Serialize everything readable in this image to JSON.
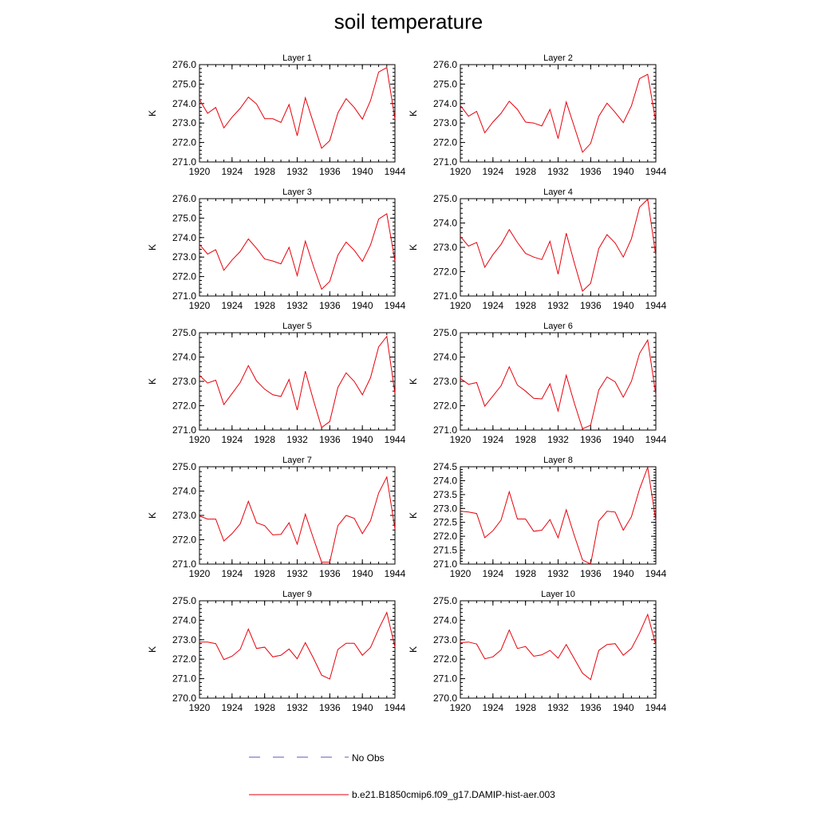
{
  "title": "soil temperature",
  "legend": {
    "obs_label": "No Obs",
    "obs_color": "#5b5bb5",
    "model_label": "b.e21.B1850cmip6.f09_g17.DAMIP-hist-aer.003",
    "model_color": "#e8000b"
  },
  "chart_data": [
    {
      "type": "line",
      "title": "Layer 1",
      "ylabel": "K",
      "x": [
        1920,
        1921,
        1922,
        1923,
        1924,
        1925,
        1926,
        1927,
        1928,
        1929,
        1930,
        1931,
        1932,
        1933,
        1934,
        1935,
        1936,
        1937,
        1938,
        1939,
        1940,
        1941,
        1942,
        1943,
        1944
      ],
      "values": [
        274.2,
        273.5,
        273.8,
        272.75,
        273.3,
        273.75,
        274.33,
        273.98,
        273.22,
        273.22,
        273.03,
        273.95,
        272.35,
        274.3,
        273.0,
        271.7,
        272.1,
        273.52,
        274.25,
        273.8,
        273.2,
        274.15,
        275.62,
        275.85,
        273.2
      ],
      "ylim": [
        271.0,
        276.0
      ],
      "yticks": [
        271.0,
        272.0,
        273.0,
        274.0,
        275.0,
        276.0
      ],
      "ytick_format": 1,
      "xticks": [
        1920,
        1924,
        1928,
        1932,
        1936,
        1940,
        1944
      ]
    },
    {
      "type": "line",
      "title": "Layer 2",
      "ylabel": "K",
      "x": [
        1920,
        1921,
        1922,
        1923,
        1924,
        1925,
        1926,
        1927,
        1928,
        1929,
        1930,
        1931,
        1932,
        1933,
        1934,
        1935,
        1936,
        1937,
        1938,
        1939,
        1940,
        1941,
        1942,
        1943,
        1944
      ],
      "values": [
        273.9,
        273.35,
        273.6,
        272.5,
        273.05,
        273.5,
        274.12,
        273.7,
        273.05,
        273.0,
        272.85,
        273.7,
        272.2,
        274.08,
        272.8,
        271.5,
        271.95,
        273.35,
        274.02,
        273.55,
        273.02,
        273.88,
        275.28,
        275.5,
        273.05
      ],
      "ylim": [
        271.0,
        276.0
      ],
      "yticks": [
        271.0,
        272.0,
        273.0,
        274.0,
        275.0,
        276.0
      ],
      "ytick_format": 1,
      "xticks": [
        1920,
        1924,
        1928,
        1932,
        1936,
        1940,
        1944
      ]
    },
    {
      "type": "line",
      "title": "Layer 3",
      "ylabel": "K",
      "x": [
        1920,
        1921,
        1922,
        1923,
        1924,
        1925,
        1926,
        1927,
        1928,
        1929,
        1930,
        1931,
        1932,
        1933,
        1934,
        1935,
        1936,
        1937,
        1938,
        1939,
        1940,
        1941,
        1942,
        1943,
        1944
      ],
      "values": [
        273.65,
        273.15,
        273.38,
        272.32,
        272.85,
        273.28,
        273.93,
        273.45,
        272.9,
        272.8,
        272.65,
        273.5,
        272.05,
        273.82,
        272.52,
        271.35,
        271.75,
        273.1,
        273.77,
        273.35,
        272.78,
        273.62,
        274.95,
        275.22,
        272.8
      ],
      "ylim": [
        271.0,
        276.0
      ],
      "yticks": [
        271.0,
        272.0,
        273.0,
        274.0,
        275.0,
        276.0
      ],
      "ytick_format": 1,
      "xticks": [
        1920,
        1924,
        1928,
        1932,
        1936,
        1940,
        1944
      ]
    },
    {
      "type": "line",
      "title": "Layer 4",
      "ylabel": "K",
      "x": [
        1920,
        1921,
        1922,
        1923,
        1924,
        1925,
        1926,
        1927,
        1928,
        1929,
        1930,
        1931,
        1932,
        1933,
        1934,
        1935,
        1936,
        1937,
        1938,
        1939,
        1940,
        1941,
        1942,
        1943,
        1944
      ],
      "values": [
        273.45,
        273.05,
        273.2,
        272.18,
        272.7,
        273.12,
        273.73,
        273.2,
        272.75,
        272.6,
        272.5,
        273.25,
        271.9,
        273.58,
        272.35,
        271.2,
        271.52,
        272.95,
        273.52,
        273.18,
        272.6,
        273.35,
        274.65,
        274.98,
        272.65
      ],
      "ylim": [
        271.0,
        275.0
      ],
      "yticks": [
        271.0,
        272.0,
        273.0,
        274.0,
        275.0
      ],
      "ytick_format": 1,
      "xticks": [
        1920,
        1924,
        1928,
        1932,
        1936,
        1940,
        1944
      ]
    },
    {
      "type": "line",
      "title": "Layer 5",
      "ylabel": "K",
      "x": [
        1920,
        1921,
        1922,
        1923,
        1924,
        1925,
        1926,
        1927,
        1928,
        1929,
        1930,
        1931,
        1932,
        1933,
        1934,
        1935,
        1936,
        1937,
        1938,
        1939,
        1940,
        1941,
        1942,
        1943,
        1944
      ],
      "values": [
        273.25,
        272.93,
        273.05,
        272.05,
        272.5,
        272.95,
        273.65,
        273.02,
        272.68,
        272.45,
        272.38,
        273.08,
        271.82,
        273.42,
        272.22,
        271.1,
        271.35,
        272.75,
        273.35,
        273.0,
        272.45,
        273.15,
        274.42,
        274.85,
        272.5
      ],
      "ylim": [
        271.0,
        275.0
      ],
      "yticks": [
        271.0,
        272.0,
        273.0,
        274.0,
        275.0
      ],
      "ytick_format": 1,
      "xticks": [
        1920,
        1924,
        1928,
        1932,
        1936,
        1940,
        1944
      ]
    },
    {
      "type": "line",
      "title": "Layer 6",
      "ylabel": "K",
      "x": [
        1920,
        1921,
        1922,
        1923,
        1924,
        1925,
        1926,
        1927,
        1928,
        1929,
        1930,
        1931,
        1932,
        1933,
        1934,
        1935,
        1936,
        1937,
        1938,
        1939,
        1940,
        1941,
        1942,
        1943,
        1944
      ],
      "values": [
        273.12,
        272.88,
        272.95,
        271.98,
        272.4,
        272.82,
        273.6,
        272.85,
        272.6,
        272.3,
        272.28,
        272.9,
        271.78,
        273.25,
        272.1,
        271.05,
        271.2,
        272.65,
        273.18,
        272.98,
        272.35,
        273.0,
        274.15,
        274.7,
        272.45
      ],
      "ylim": [
        271.0,
        275.0
      ],
      "yticks": [
        271.0,
        272.0,
        273.0,
        274.0,
        275.0
      ],
      "ytick_format": 1,
      "xticks": [
        1920,
        1924,
        1928,
        1932,
        1936,
        1940,
        1944
      ]
    },
    {
      "type": "line",
      "title": "Layer 7",
      "ylabel": "K",
      "x": [
        1920,
        1921,
        1922,
        1923,
        1924,
        1925,
        1926,
        1927,
        1928,
        1929,
        1930,
        1931,
        1932,
        1933,
        1934,
        1935,
        1936,
        1937,
        1938,
        1939,
        1940,
        1941,
        1942,
        1943,
        1944
      ],
      "values": [
        272.98,
        272.85,
        272.85,
        271.95,
        272.25,
        272.65,
        273.58,
        272.7,
        272.58,
        272.2,
        272.22,
        272.7,
        271.82,
        273.05,
        272.05,
        271.08,
        271.08,
        272.58,
        273.0,
        272.88,
        272.25,
        272.78,
        273.92,
        274.58,
        272.45
      ],
      "ylim": [
        271.0,
        275.0
      ],
      "yticks": [
        271.0,
        272.0,
        273.0,
        274.0,
        275.0
      ],
      "ytick_format": 1,
      "xticks": [
        1920,
        1924,
        1928,
        1932,
        1936,
        1940,
        1944
      ]
    },
    {
      "type": "line",
      "title": "Layer 8",
      "ylabel": "K",
      "x": [
        1920,
        1921,
        1922,
        1923,
        1924,
        1925,
        1926,
        1927,
        1928,
        1929,
        1930,
        1931,
        1932,
        1933,
        1934,
        1935,
        1936,
        1937,
        1938,
        1939,
        1940,
        1941,
        1942,
        1943,
        1944
      ],
      "values": [
        272.9,
        272.87,
        272.82,
        271.95,
        272.2,
        272.58,
        273.6,
        272.62,
        272.62,
        272.18,
        272.22,
        272.6,
        271.95,
        272.95,
        272.02,
        271.15,
        271.0,
        272.55,
        272.9,
        272.87,
        272.22,
        272.7,
        273.7,
        274.48,
        272.55
      ],
      "ylim": [
        271.0,
        274.5
      ],
      "yticks": [
        271.0,
        271.5,
        272.0,
        272.5,
        273.0,
        273.5,
        274.0,
        274.5
      ],
      "ytick_format": 1,
      "xticks": [
        1920,
        1924,
        1928,
        1932,
        1936,
        1940,
        1944
      ]
    },
    {
      "type": "line",
      "title": "Layer 9",
      "ylabel": "K",
      "x": [
        1920,
        1921,
        1922,
        1923,
        1924,
        1925,
        1926,
        1927,
        1928,
        1929,
        1930,
        1931,
        1932,
        1933,
        1934,
        1935,
        1936,
        1937,
        1938,
        1939,
        1940,
        1941,
        1942,
        1943,
        1944
      ],
      "values": [
        272.88,
        272.88,
        272.8,
        271.98,
        272.15,
        272.5,
        273.55,
        272.55,
        272.62,
        272.12,
        272.2,
        272.52,
        272.02,
        272.85,
        272.05,
        271.18,
        270.98,
        272.5,
        272.82,
        272.82,
        272.2,
        272.6,
        273.55,
        274.4,
        272.62
      ],
      "ylim": [
        270.0,
        275.0
      ],
      "yticks": [
        270.0,
        271.0,
        272.0,
        273.0,
        274.0,
        275.0
      ],
      "ytick_format": 1,
      "xticks": [
        1920,
        1924,
        1928,
        1932,
        1936,
        1940,
        1944
      ]
    },
    {
      "type": "line",
      "title": "Layer 10",
      "ylabel": "K",
      "x": [
        1920,
        1921,
        1922,
        1923,
        1924,
        1925,
        1926,
        1927,
        1928,
        1929,
        1930,
        1931,
        1932,
        1933,
        1934,
        1935,
        1936,
        1937,
        1938,
        1939,
        1940,
        1941,
        1942,
        1943,
        1944
      ],
      "values": [
        272.85,
        272.88,
        272.78,
        272.02,
        272.12,
        272.48,
        273.5,
        272.55,
        272.65,
        272.15,
        272.22,
        272.45,
        272.05,
        272.75,
        272.02,
        271.28,
        270.95,
        272.45,
        272.75,
        272.8,
        272.2,
        272.55,
        273.35,
        274.3,
        272.72
      ],
      "ylim": [
        270.0,
        275.0
      ],
      "yticks": [
        270.0,
        271.0,
        272.0,
        273.0,
        274.0,
        275.0
      ],
      "ytick_format": 1,
      "xticks": [
        1920,
        1924,
        1928,
        1932,
        1936,
        1940,
        1944
      ]
    }
  ]
}
